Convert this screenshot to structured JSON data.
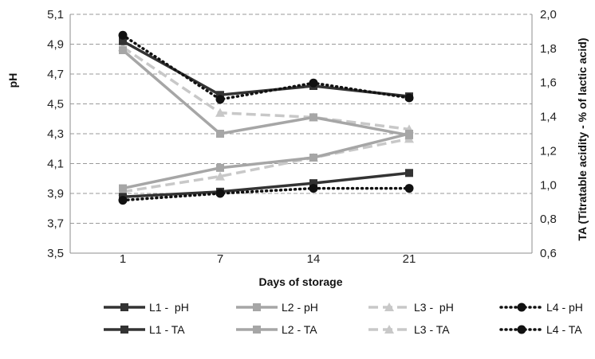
{
  "chart_data": {
    "type": "line",
    "x_label": "Days of storage",
    "x_categories": [
      "1",
      "7",
      "14",
      "21"
    ],
    "y_left": {
      "label": "pH",
      "range": [
        3.5,
        5.1
      ],
      "step": 0.2,
      "ticks": [
        "3,5",
        "3,7",
        "3,9",
        "4,1",
        "4,3",
        "4,5",
        "4,7",
        "4,9",
        "5,1"
      ]
    },
    "y_right": {
      "label": "TA (Titratable acidity - % of lactic acid)",
      "range": [
        0.6,
        2.0
      ],
      "step": 0.2,
      "ticks": [
        "0,6",
        "0,8",
        "1,0",
        "1,2",
        "1,4",
        "1,6",
        "1,8",
        "2,0"
      ]
    },
    "grid": "horizontal dashed",
    "legend_position": "bottom",
    "series": [
      {
        "name": "L1 -  pH",
        "axis": "left",
        "values": [
          4.92,
          4.56,
          4.62,
          4.55
        ],
        "color": "#333333",
        "dash": "solid",
        "marker": "square"
      },
      {
        "name": "L2 - pH",
        "axis": "left",
        "values": [
          4.86,
          4.3,
          4.41,
          4.29
        ],
        "color": "#a6a6a6",
        "dash": "solid",
        "marker": "square"
      },
      {
        "name": "L3 -  pH",
        "axis": "left",
        "values": [
          4.88,
          4.44,
          4.41,
          4.33
        ],
        "color": "#c8c8c8",
        "dash": "dashed",
        "marker": "triangle"
      },
      {
        "name": "L4 - pH",
        "axis": "left",
        "values": [
          4.96,
          4.53,
          4.64,
          4.54
        ],
        "color": "#111111",
        "dash": "dotted",
        "marker": "circle"
      },
      {
        "name": "L1 - TA",
        "axis": "right",
        "values": [
          0.93,
          0.96,
          1.01,
          1.07
        ],
        "color": "#333333",
        "dash": "solid",
        "marker": "square"
      },
      {
        "name": "L2 - TA",
        "axis": "right",
        "values": [
          0.98,
          1.1,
          1.16,
          1.3
        ],
        "color": "#a6a6a6",
        "dash": "solid",
        "marker": "square"
      },
      {
        "name": "L3 - TA",
        "axis": "right",
        "values": [
          0.96,
          1.05,
          1.16,
          1.27
        ],
        "color": "#c8c8c8",
        "dash": "dashed",
        "marker": "triangle"
      },
      {
        "name": "L4 - TA",
        "axis": "right",
        "values": [
          0.91,
          0.95,
          0.98,
          0.98
        ],
        "color": "#111111",
        "dash": "dotted",
        "marker": "circle"
      }
    ]
  }
}
